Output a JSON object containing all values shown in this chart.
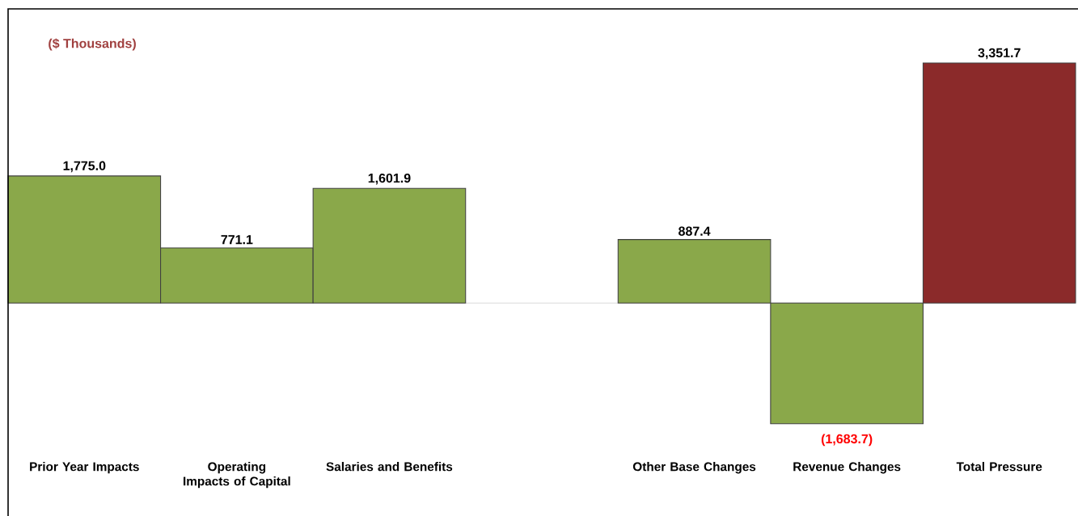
{
  "chart_data": {
    "type": "bar",
    "categories": [
      "Prior Year Impacts",
      "Operating Impacts of Capital",
      "Salaries and Benefits",
      null,
      "Other Base Changes",
      "Revenue Changes",
      "Total Pressure"
    ],
    "values": [
      1775.0,
      771.1,
      1601.9,
      null,
      887.4,
      -1683.7,
      3351.7
    ],
    "colors": [
      "#8aa84a",
      "#8aa84a",
      "#8aa84a",
      "#8aa84a",
      "#8aa84a",
      "#8aa84a",
      "#8b2a2a"
    ],
    "value_labels": [
      "1,775.0",
      "771.1",
      "1,601.9",
      null,
      "887.4",
      "(1,683.7)",
      "3,351.7"
    ],
    "tick_labels": "x",
    "annotations": [
      "($ Thousands)"
    ]
  }
}
